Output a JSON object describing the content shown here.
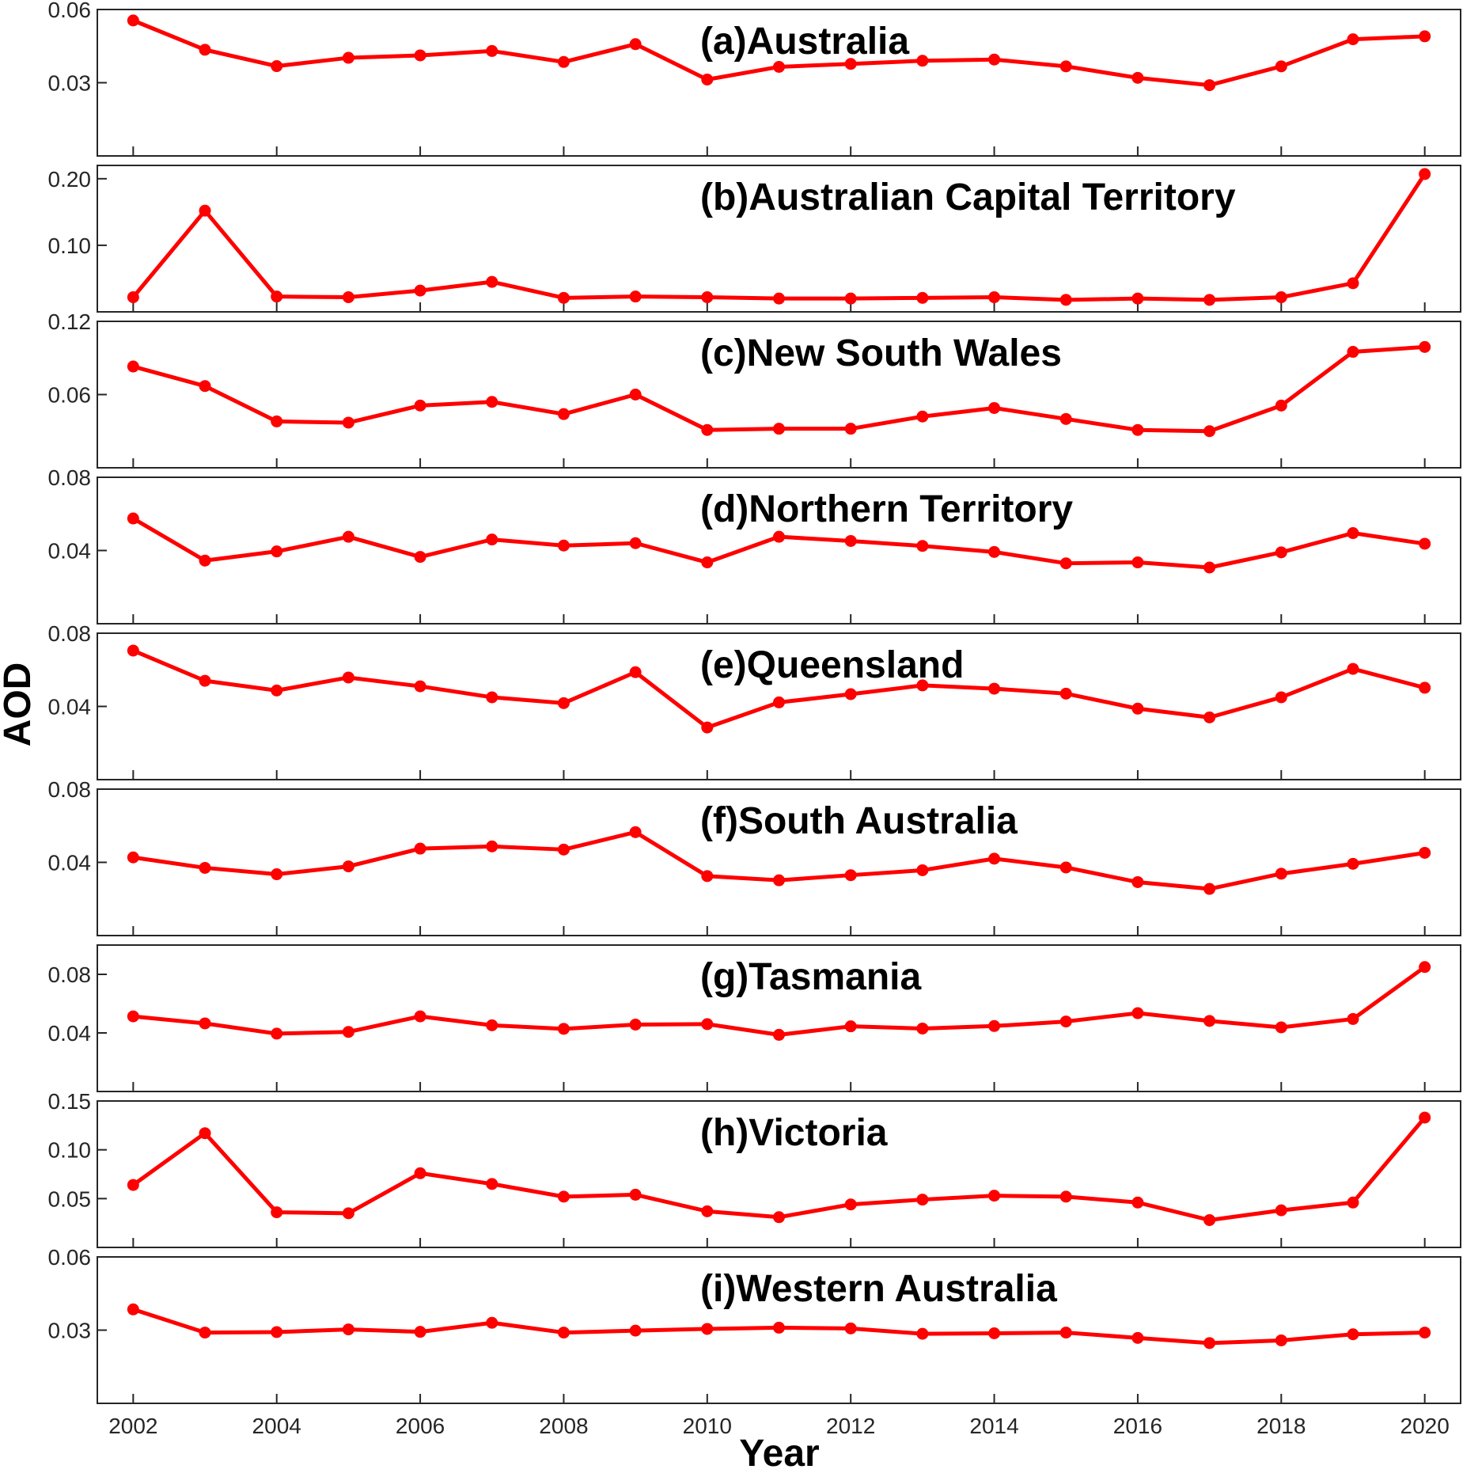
{
  "chart_data": {
    "type": "line",
    "ylabel": "AOD",
    "xlabel": "Year",
    "x": [
      2002,
      2003,
      2004,
      2005,
      2006,
      2007,
      2008,
      2009,
      2010,
      2011,
      2012,
      2013,
      2014,
      2015,
      2016,
      2017,
      2018,
      2019,
      2020
    ],
    "xticks": [
      "2002",
      "2004",
      "2006",
      "2008",
      "2010",
      "2012",
      "2014",
      "2016",
      "2018",
      "2020"
    ],
    "xlim": [
      2001.5,
      2020.5
    ],
    "line_color": "#ff0000",
    "panels": [
      {
        "title": "(a)Australia",
        "ylim": [
          0,
          0.06
        ],
        "yticks": [
          "0.06",
          "0.03"
        ],
        "ytick_values": [
          0.06,
          0.03
        ],
        "values": [
          0.0555,
          0.0435,
          0.0368,
          0.0402,
          0.0412,
          0.043,
          0.0385,
          0.0458,
          0.0313,
          0.0365,
          0.0377,
          0.039,
          0.0395,
          0.0367,
          0.032,
          0.029,
          0.0367,
          0.0478,
          0.049
        ]
      },
      {
        "title": "(b)Australian Capital Territory",
        "ylim": [
          0,
          0.22
        ],
        "yticks": [
          "0.20",
          "0.10"
        ],
        "ytick_values": [
          0.2,
          0.1
        ],
        "values": [
          0.022,
          0.152,
          0.023,
          0.022,
          0.032,
          0.045,
          0.021,
          0.023,
          0.022,
          0.02,
          0.02,
          0.021,
          0.022,
          0.018,
          0.02,
          0.018,
          0.022,
          0.043,
          0.207
        ]
      },
      {
        "title": "(c)New South Wales",
        "ylim": [
          0,
          0.12
        ],
        "yticks": [
          "0.12",
          "0.06"
        ],
        "ytick_values": [
          0.12,
          0.06
        ],
        "values": [
          0.083,
          0.067,
          0.038,
          0.037,
          0.051,
          0.054,
          0.044,
          0.06,
          0.031,
          0.032,
          0.032,
          0.042,
          0.049,
          0.04,
          0.031,
          0.03,
          0.051,
          0.095,
          0.099
        ]
      },
      {
        "title": "(d)Northern Territory",
        "ylim": [
          0,
          0.08
        ],
        "yticks": [
          "0.08",
          "0.04"
        ],
        "ytick_values": [
          0.08,
          0.04
        ],
        "values": [
          0.0575,
          0.0345,
          0.0395,
          0.0475,
          0.0365,
          0.046,
          0.0427,
          0.044,
          0.0335,
          0.0475,
          0.0452,
          0.0425,
          0.0392,
          0.033,
          0.0335,
          0.0307,
          0.039,
          0.0495,
          0.0437
        ]
      },
      {
        "title": "(e)Queensland",
        "ylim": [
          0,
          0.08
        ],
        "yticks": [
          "0.08",
          "0.04"
        ],
        "ytick_values": [
          0.08,
          0.04
        ],
        "values": [
          0.0705,
          0.054,
          0.0487,
          0.0558,
          0.051,
          0.045,
          0.0418,
          0.0587,
          0.0285,
          0.0422,
          0.0467,
          0.0515,
          0.0497,
          0.047,
          0.0388,
          0.034,
          0.045,
          0.0605,
          0.0502
        ]
      },
      {
        "title": "(f)South Australia",
        "ylim": [
          0,
          0.08
        ],
        "yticks": [
          "0.08",
          "0.04"
        ],
        "ytick_values": [
          0.08,
          0.04
        ],
        "values": [
          0.0427,
          0.037,
          0.0335,
          0.0378,
          0.0475,
          0.0487,
          0.047,
          0.0565,
          0.0325,
          0.0302,
          0.033,
          0.0357,
          0.042,
          0.0372,
          0.0292,
          0.0255,
          0.0338,
          0.0392,
          0.0452
        ]
      },
      {
        "title": "(g)Tasmania",
        "ylim": [
          0,
          0.1
        ],
        "yticks": [
          "0.08",
          "0.04"
        ],
        "ytick_values": [
          0.08,
          0.04
        ],
        "values": [
          0.0513,
          0.0465,
          0.0395,
          0.0407,
          0.0513,
          0.0452,
          0.0428,
          0.0457,
          0.046,
          0.0387,
          0.0445,
          0.043,
          0.0447,
          0.0478,
          0.0535,
          0.0482,
          0.0438,
          0.0495,
          0.085
        ]
      },
      {
        "title": "(h)Victoria",
        "ylim": [
          0,
          0.15
        ],
        "yticks": [
          "0.15",
          "0.10",
          "0.05"
        ],
        "ytick_values": [
          0.15,
          0.1,
          0.05
        ],
        "values": [
          0.064,
          0.117,
          0.036,
          0.035,
          0.076,
          0.065,
          0.052,
          0.054,
          0.037,
          0.031,
          0.044,
          0.049,
          0.053,
          0.052,
          0.046,
          0.028,
          0.038,
          0.046,
          0.133
        ]
      },
      {
        "title": "(i)Western Australia",
        "ylim": [
          0,
          0.06
        ],
        "yticks": [
          "0.06",
          "0.03"
        ],
        "ytick_values": [
          0.06,
          0.03
        ],
        "values": [
          0.0385,
          0.029,
          0.0292,
          0.0303,
          0.0293,
          0.033,
          0.029,
          0.0298,
          0.0305,
          0.031,
          0.0307,
          0.0285,
          0.0287,
          0.029,
          0.0268,
          0.0247,
          0.0258,
          0.0283,
          0.029
        ]
      }
    ]
  }
}
